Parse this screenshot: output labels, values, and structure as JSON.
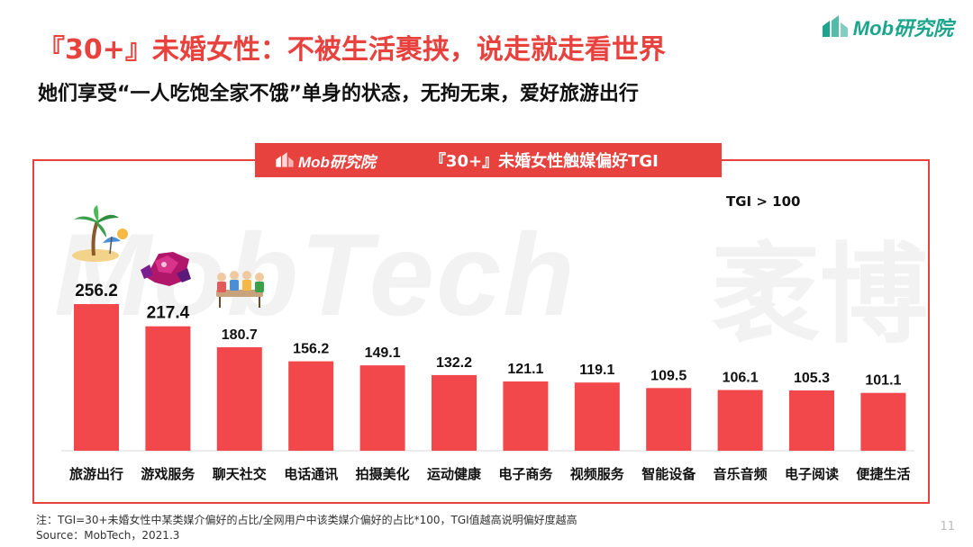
{
  "slide": {
    "title": "『30+』未婚女性：不被生活裹挟，说走就走看世界",
    "subtitle": "她们享受“一人吃饱全家不饿”单身的状态，无拘无束，爱好旅游出行",
    "logo_text": "Mob研究院",
    "watermark_text": "MobTech",
    "watermark_cn": "袤博",
    "footnote_line1": "注：TGI=30+未婚女性中某类媒介偏好的占比/全网用户中该类媒介偏好的占比*100，TGI值越高说明偏好度越高",
    "footnote_line2": "Source：MobTech，2021.3",
    "page_number": "11"
  },
  "chart_header": {
    "logo_text": "Mob研究院",
    "title": "『30+』未婚女性触媒偏好TGI"
  },
  "tgi_note": "TGI > 100",
  "colors": {
    "accent": "#e8423f",
    "bar": "#f2474b",
    "logo_green": "#1aa58c"
  },
  "icons": [
    "beach-palm-icon",
    "game-character-icon",
    "people-chatting-icon"
  ],
  "chart_data": {
    "type": "bar",
    "title": "『30+』未婚女性触媒偏好TGI",
    "xlabel": "",
    "ylabel": "",
    "categories": [
      "旅游出行",
      "游戏服务",
      "聊天社交",
      "电话通讯",
      "拍摄美化",
      "运动健康",
      "电子商务",
      "视频服务",
      "智能设备",
      "音乐音频",
      "电子阅读",
      "便捷生活"
    ],
    "values": [
      256.2,
      217.4,
      180.7,
      156.2,
      149.1,
      132.2,
      121.1,
      119.1,
      109.5,
      106.1,
      105.3,
      101.1
    ],
    "value_labels": [
      "256.2",
      "217.4",
      "180.7",
      "156.2",
      "149.1",
      "132.2",
      "121.1",
      "119.1",
      "109.5",
      "106.1",
      "105.3",
      "101.1"
    ],
    "ylim": [
      0,
      256.2
    ],
    "grid": false,
    "legend": "none",
    "data_labels": true
  }
}
